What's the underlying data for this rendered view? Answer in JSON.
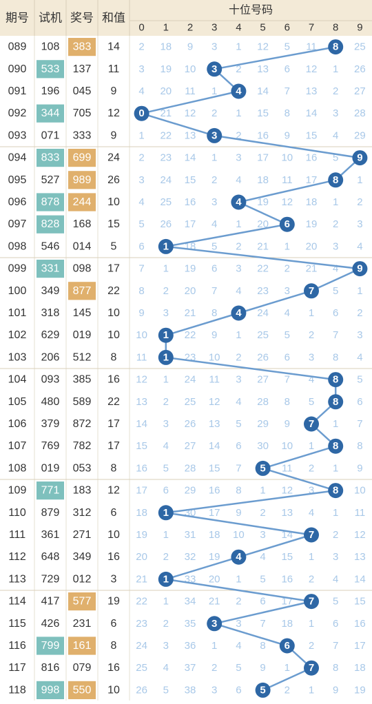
{
  "header": {
    "col_period": "期号",
    "col_trial": "试机",
    "col_prize": "奖号",
    "col_sum": "和值",
    "group_title": "十位号码",
    "digits": [
      "0",
      "1",
      "2",
      "3",
      "4",
      "5",
      "6",
      "7",
      "8",
      "9"
    ]
  },
  "colors": {
    "header_bg": "#f3ead7",
    "teal_cell": "#7ec0bd",
    "orange_cell": "#e0b06c",
    "ball": "#2e67a5",
    "line": "#6b9ccf",
    "miss_text": "#a8c8e8",
    "body_text": "#333333"
  },
  "rows": [
    {
      "period": "089",
      "trial": "108",
      "prize": "383",
      "sum": "14",
      "trial_hl": false,
      "prize_hl": true,
      "misses": [
        "2",
        "18",
        "9",
        "3",
        "1",
        "12",
        "5",
        "11",
        "8",
        "25"
      ]
    },
    {
      "period": "090",
      "trial": "533",
      "prize": "137",
      "sum": "11",
      "trial_hl": true,
      "prize_hl": false,
      "misses": [
        "3",
        "19",
        "10",
        "3",
        "2",
        "13",
        "6",
        "12",
        "1",
        "26"
      ]
    },
    {
      "period": "091",
      "trial": "196",
      "prize": "045",
      "sum": "9",
      "trial_hl": false,
      "prize_hl": false,
      "misses": [
        "4",
        "20",
        "11",
        "1",
        "4",
        "14",
        "7",
        "13",
        "2",
        "27"
      ]
    },
    {
      "period": "092",
      "trial": "344",
      "prize": "705",
      "sum": "12",
      "trial_hl": true,
      "prize_hl": false,
      "misses": [
        "0",
        "21",
        "12",
        "2",
        "1",
        "15",
        "8",
        "14",
        "3",
        "28"
      ]
    },
    {
      "period": "093",
      "trial": "071",
      "prize": "333",
      "sum": "9",
      "trial_hl": false,
      "prize_hl": false,
      "misses": [
        "1",
        "22",
        "13",
        "3",
        "2",
        "16",
        "9",
        "15",
        "4",
        "29"
      ]
    },
    {
      "period": "094",
      "trial": "833",
      "prize": "699",
      "sum": "24",
      "trial_hl": true,
      "prize_hl": true,
      "misses": [
        "2",
        "23",
        "14",
        "1",
        "3",
        "17",
        "10",
        "16",
        "5",
        "9"
      ]
    },
    {
      "period": "095",
      "trial": "527",
      "prize": "989",
      "sum": "26",
      "trial_hl": false,
      "prize_hl": true,
      "misses": [
        "3",
        "24",
        "15",
        "2",
        "4",
        "18",
        "11",
        "17",
        "8",
        "1"
      ]
    },
    {
      "period": "096",
      "trial": "878",
      "prize": "244",
      "sum": "10",
      "trial_hl": true,
      "prize_hl": true,
      "misses": [
        "4",
        "25",
        "16",
        "3",
        "4",
        "19",
        "12",
        "18",
        "1",
        "2"
      ]
    },
    {
      "period": "097",
      "trial": "828",
      "prize": "168",
      "sum": "15",
      "trial_hl": true,
      "prize_hl": false,
      "misses": [
        "5",
        "26",
        "17",
        "4",
        "1",
        "20",
        "6",
        "19",
        "2",
        "3"
      ]
    },
    {
      "period": "098",
      "trial": "546",
      "prize": "014",
      "sum": "5",
      "trial_hl": false,
      "prize_hl": false,
      "misses": [
        "6",
        "1",
        "18",
        "5",
        "2",
        "21",
        "1",
        "20",
        "3",
        "4"
      ]
    },
    {
      "period": "099",
      "trial": "331",
      "prize": "098",
      "sum": "17",
      "trial_hl": true,
      "prize_hl": false,
      "misses": [
        "7",
        "1",
        "19",
        "6",
        "3",
        "22",
        "2",
        "21",
        "4",
        "9"
      ]
    },
    {
      "period": "100",
      "trial": "349",
      "prize": "877",
      "sum": "22",
      "trial_hl": false,
      "prize_hl": true,
      "misses": [
        "8",
        "2",
        "20",
        "7",
        "4",
        "23",
        "3",
        "7",
        "5",
        "1"
      ]
    },
    {
      "period": "101",
      "trial": "318",
      "prize": "145",
      "sum": "10",
      "trial_hl": false,
      "prize_hl": false,
      "misses": [
        "9",
        "3",
        "21",
        "8",
        "4",
        "24",
        "4",
        "1",
        "6",
        "2"
      ]
    },
    {
      "period": "102",
      "trial": "629",
      "prize": "019",
      "sum": "10",
      "trial_hl": false,
      "prize_hl": false,
      "misses": [
        "10",
        "1",
        "22",
        "9",
        "1",
        "25",
        "5",
        "2",
        "7",
        "3"
      ]
    },
    {
      "period": "103",
      "trial": "206",
      "prize": "512",
      "sum": "8",
      "trial_hl": false,
      "prize_hl": false,
      "misses": [
        "11",
        "1",
        "23",
        "10",
        "2",
        "26",
        "6",
        "3",
        "8",
        "4"
      ]
    },
    {
      "period": "104",
      "trial": "093",
      "prize": "385",
      "sum": "16",
      "trial_hl": false,
      "prize_hl": false,
      "misses": [
        "12",
        "1",
        "24",
        "11",
        "3",
        "27",
        "7",
        "4",
        "8",
        "5"
      ]
    },
    {
      "period": "105",
      "trial": "480",
      "prize": "589",
      "sum": "22",
      "trial_hl": false,
      "prize_hl": false,
      "misses": [
        "13",
        "2",
        "25",
        "12",
        "4",
        "28",
        "8",
        "5",
        "8",
        "6"
      ]
    },
    {
      "period": "106",
      "trial": "379",
      "prize": "872",
      "sum": "17",
      "trial_hl": false,
      "prize_hl": false,
      "misses": [
        "14",
        "3",
        "26",
        "13",
        "5",
        "29",
        "9",
        "7",
        "1",
        "7"
      ]
    },
    {
      "period": "107",
      "trial": "769",
      "prize": "782",
      "sum": "17",
      "trial_hl": false,
      "prize_hl": false,
      "misses": [
        "15",
        "4",
        "27",
        "14",
        "6",
        "30",
        "10",
        "1",
        "8",
        "8"
      ]
    },
    {
      "period": "108",
      "trial": "019",
      "prize": "053",
      "sum": "8",
      "trial_hl": false,
      "prize_hl": false,
      "misses": [
        "16",
        "5",
        "28",
        "15",
        "7",
        "5",
        "11",
        "2",
        "1",
        "9"
      ]
    },
    {
      "period": "109",
      "trial": "771",
      "prize": "183",
      "sum": "12",
      "trial_hl": true,
      "prize_hl": false,
      "misses": [
        "17",
        "6",
        "29",
        "16",
        "8",
        "1",
        "12",
        "3",
        "8",
        "10"
      ]
    },
    {
      "period": "110",
      "trial": "879",
      "prize": "312",
      "sum": "6",
      "trial_hl": false,
      "prize_hl": false,
      "misses": [
        "18",
        "1",
        "30",
        "17",
        "9",
        "2",
        "13",
        "4",
        "1",
        "11"
      ]
    },
    {
      "period": "111",
      "trial": "361",
      "prize": "271",
      "sum": "10",
      "trial_hl": false,
      "prize_hl": false,
      "misses": [
        "19",
        "1",
        "31",
        "18",
        "10",
        "3",
        "14",
        "7",
        "2",
        "12"
      ]
    },
    {
      "period": "112",
      "trial": "648",
      "prize": "349",
      "sum": "16",
      "trial_hl": false,
      "prize_hl": false,
      "misses": [
        "20",
        "2",
        "32",
        "19",
        "4",
        "4",
        "15",
        "1",
        "3",
        "13"
      ]
    },
    {
      "period": "113",
      "trial": "729",
      "prize": "012",
      "sum": "3",
      "trial_hl": false,
      "prize_hl": false,
      "misses": [
        "21",
        "1",
        "33",
        "20",
        "1",
        "5",
        "16",
        "2",
        "4",
        "14"
      ]
    },
    {
      "period": "114",
      "trial": "417",
      "prize": "577",
      "sum": "19",
      "trial_hl": false,
      "prize_hl": true,
      "misses": [
        "22",
        "1",
        "34",
        "21",
        "2",
        "6",
        "17",
        "7",
        "5",
        "15"
      ]
    },
    {
      "period": "115",
      "trial": "426",
      "prize": "231",
      "sum": "6",
      "trial_hl": false,
      "prize_hl": false,
      "misses": [
        "23",
        "2",
        "35",
        "3",
        "3",
        "7",
        "18",
        "1",
        "6",
        "16"
      ]
    },
    {
      "period": "116",
      "trial": "799",
      "prize": "161",
      "sum": "8",
      "trial_hl": true,
      "prize_hl": true,
      "misses": [
        "24",
        "3",
        "36",
        "1",
        "4",
        "8",
        "6",
        "2",
        "7",
        "17"
      ]
    },
    {
      "period": "117",
      "trial": "816",
      "prize": "079",
      "sum": "16",
      "trial_hl": false,
      "prize_hl": false,
      "misses": [
        "25",
        "4",
        "37",
        "2",
        "5",
        "9",
        "1",
        "7",
        "8",
        "18"
      ]
    },
    {
      "period": "118",
      "trial": "998",
      "prize": "550",
      "sum": "10",
      "trial_hl": true,
      "prize_hl": true,
      "misses": [
        "26",
        "5",
        "38",
        "3",
        "6",
        "5",
        "2",
        "1",
        "9",
        "19"
      ]
    }
  ],
  "chart_data": {
    "type": "line",
    "title": "十位号码",
    "xlabel": "期号",
    "ylabel": "",
    "categories": [
      "089",
      "090",
      "091",
      "092",
      "093",
      "094",
      "095",
      "096",
      "097",
      "098",
      "099",
      "100",
      "101",
      "102",
      "103",
      "104",
      "105",
      "106",
      "107",
      "108",
      "109",
      "110",
      "111",
      "112",
      "113",
      "114",
      "115",
      "116",
      "117",
      "118"
    ],
    "values": [
      8,
      3,
      4,
      0,
      3,
      9,
      8,
      4,
      6,
      1,
      9,
      7,
      4,
      1,
      1,
      8,
      8,
      7,
      8,
      5,
      8,
      1,
      7,
      4,
      1,
      7,
      3,
      6,
      7,
      5
    ],
    "ylim": [
      0,
      9
    ],
    "grid": true,
    "legend": "none"
  }
}
